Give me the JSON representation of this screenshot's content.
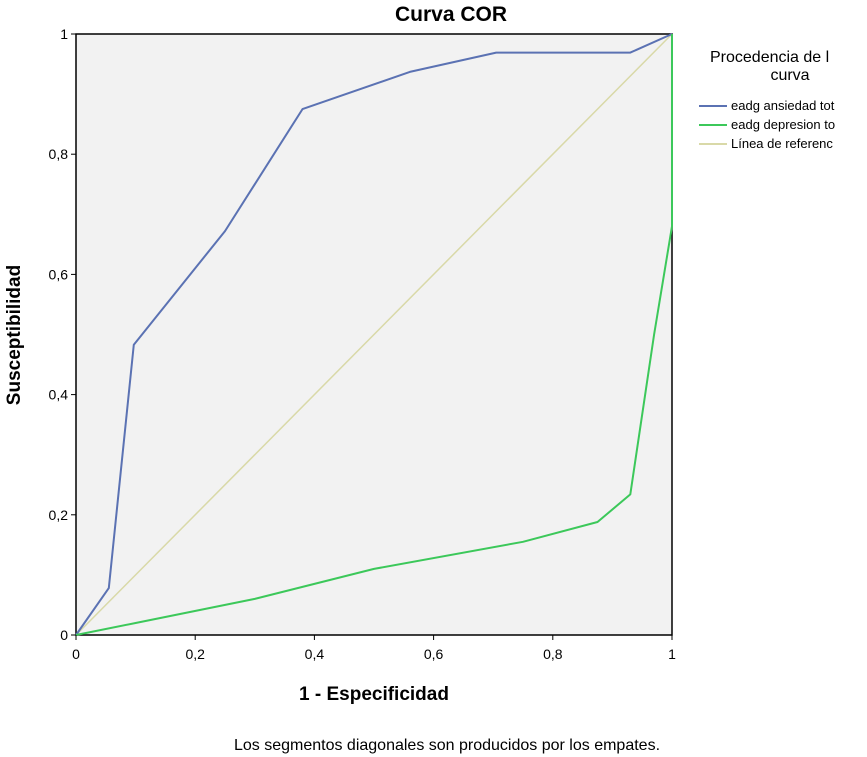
{
  "chart_data": {
    "type": "line",
    "title": "Curva COR",
    "xlabel": "1 - Especificidad",
    "ylabel": "Susceptibilidad",
    "xlim": [
      0,
      1
    ],
    "ylim": [
      0,
      1
    ],
    "x_ticks": [
      0,
      0.2,
      0.4,
      0.6,
      0.8,
      1
    ],
    "x_tick_labels": [
      "0",
      "0,2",
      "0,4",
      "0,6",
      "0,8",
      "1"
    ],
    "y_ticks": [
      0,
      0.2,
      0.4,
      0.6,
      0.8,
      1
    ],
    "y_tick_labels": [
      "0",
      "0,2",
      "0,4",
      "0,6",
      "0,8",
      "1"
    ],
    "grid": false,
    "legend": {
      "title_lines": [
        "Procedencia de l",
        "curva"
      ],
      "position": "right"
    },
    "series": [
      {
        "name": "eadg ansiedad tot",
        "color": "#5b72b3",
        "x": [
          0,
          0.055,
          0.097,
          0.25,
          0.38,
          0.56,
          0.705,
          0.93,
          1
        ],
        "y": [
          0,
          0.078,
          0.483,
          0.672,
          0.875,
          0.937,
          0.969,
          0.969,
          1
        ]
      },
      {
        "name": "eadg depresion to",
        "color": "#3cc85a",
        "x": [
          0,
          0.1,
          0.3,
          0.5,
          0.75,
          0.875,
          0.93,
          0.97,
          1,
          1
        ],
        "y": [
          0,
          0.02,
          0.06,
          0.11,
          0.155,
          0.188,
          0.234,
          0.5,
          0.68,
          1
        ]
      },
      {
        "name": "Línea de referenc",
        "color": "#d9d9a8",
        "x": [
          0,
          1
        ],
        "y": [
          0,
          1
        ]
      }
    ],
    "footnote": "Los segmentos diagonales son producidos por los empates."
  }
}
